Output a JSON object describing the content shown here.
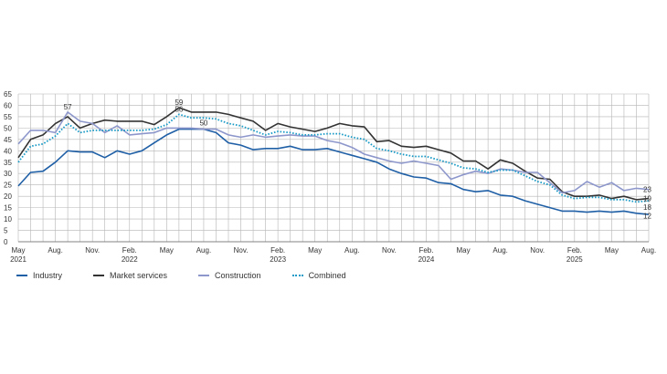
{
  "chart_data": {
    "type": "line",
    "title": "",
    "xlabel": "",
    "ylabel": "",
    "ylim": [
      0,
      65
    ],
    "yticks": [
      0,
      5,
      10,
      15,
      20,
      25,
      30,
      35,
      40,
      45,
      50,
      55,
      60,
      65
    ],
    "grid": true,
    "legend_position": "bottom",
    "x": [
      "2021-05",
      "2021-06",
      "2021-07",
      "2021-08",
      "2021-09",
      "2021-10",
      "2021-11",
      "2021-12",
      "2022-01",
      "2022-02",
      "2022-03",
      "2022-04",
      "2022-05",
      "2022-06",
      "2022-07",
      "2022-08",
      "2022-09",
      "2022-10",
      "2022-11",
      "2022-12",
      "2023-01",
      "2023-02",
      "2023-03",
      "2023-04",
      "2023-05",
      "2023-06",
      "2023-07",
      "2023-08",
      "2023-09",
      "2023-10",
      "2023-11",
      "2023-12",
      "2024-01",
      "2024-02",
      "2024-03",
      "2024-04",
      "2024-05",
      "2024-06",
      "2024-07",
      "2024-08",
      "2024-09",
      "2024-10",
      "2024-11",
      "2024-12",
      "2025-01",
      "2025-02",
      "2025-03",
      "2025-04",
      "2025-05",
      "2025-06",
      "2025-07",
      "2025-08"
    ],
    "x_tick_labels": [
      {
        "month": "May",
        "year": "2021"
      },
      {
        "month": "Aug.",
        "year": ""
      },
      {
        "month": "Nov.",
        "year": ""
      },
      {
        "month": "Feb.",
        "year": "2022"
      },
      {
        "month": "May",
        "year": ""
      },
      {
        "month": "Aug.",
        "year": ""
      },
      {
        "month": "Nov.",
        "year": ""
      },
      {
        "month": "Feb.",
        "year": "2023"
      },
      {
        "month": "May",
        "year": ""
      },
      {
        "month": "Aug.",
        "year": ""
      },
      {
        "month": "Nov.",
        "year": ""
      },
      {
        "month": "Feb.",
        "year": "2024"
      },
      {
        "month": "May",
        "year": ""
      },
      {
        "month": "Aug.",
        "year": ""
      },
      {
        "month": "Nov.",
        "year": ""
      },
      {
        "month": "Feb.",
        "year": "2025"
      },
      {
        "month": "May",
        "year": ""
      },
      {
        "month": "Aug.",
        "year": ""
      }
    ],
    "series": [
      {
        "name": "Industry",
        "color": "#1f5fa6",
        "style": "solid",
        "values": [
          24.5,
          30.5,
          31,
          35,
          40,
          39.5,
          39.5,
          37,
          40,
          38.5,
          40,
          43.5,
          47,
          49.5,
          49.5,
          49.5,
          48,
          43.5,
          42.5,
          40.5,
          41,
          41,
          42,
          40.5,
          40.5,
          41,
          39.5,
          38,
          36.5,
          35,
          32,
          30,
          28.5,
          28,
          26,
          25.5,
          23,
          22,
          22.5,
          20.5,
          20,
          18,
          16.5,
          15,
          13.5,
          13.5,
          13,
          13.5,
          13,
          13.5,
          12.5,
          12
        ]
      },
      {
        "name": "Market services",
        "color": "#333333",
        "style": "solid",
        "values": [
          37,
          45,
          47,
          52,
          55,
          50,
          52,
          53.5,
          53,
          53,
          53,
          51.5,
          55,
          59,
          57,
          57,
          57,
          56,
          54.5,
          53,
          49,
          52,
          50.5,
          49.5,
          48.5,
          50,
          52,
          51,
          50.5,
          44,
          44.5,
          42,
          41.5,
          42,
          40.5,
          39,
          35.5,
          35.5,
          32,
          36,
          34.5,
          31,
          28,
          27.5,
          22,
          20,
          20,
          20.5,
          19,
          20,
          18.5,
          19
        ]
      },
      {
        "name": "Construction",
        "color": "#8d97cb",
        "style": "solid",
        "values": [
          43,
          49,
          49,
          48,
          57,
          53,
          52,
          48,
          51,
          47,
          47.5,
          48,
          50,
          50,
          50,
          49.5,
          49.5,
          47,
          46,
          47,
          46,
          46.5,
          47,
          46.5,
          46.5,
          44.5,
          43.5,
          41.5,
          38.5,
          37,
          35.5,
          34.5,
          35.5,
          34.5,
          33.5,
          27.5,
          29.5,
          31,
          30,
          32,
          31.5,
          30.5,
          30.5,
          26,
          21.5,
          22.5,
          26.5,
          24,
          26,
          22.5,
          23.5,
          23
        ]
      },
      {
        "name": "Combined",
        "color": "#1a9bc7",
        "style": "dotted",
        "values": [
          35,
          42,
          43,
          46.5,
          52,
          48,
          49,
          49,
          49,
          49,
          49,
          49.5,
          51.5,
          56,
          54.5,
          54.5,
          54,
          52,
          51,
          49,
          47,
          48.5,
          48,
          47,
          47,
          47.5,
          47.5,
          46,
          45,
          41,
          40,
          38.5,
          37.5,
          37.5,
          36,
          34.5,
          32.5,
          32,
          30.5,
          31.5,
          31.5,
          29,
          26.5,
          25,
          20.5,
          19,
          19.5,
          19.5,
          18.5,
          18.5,
          17.5,
          18
        ]
      }
    ],
    "annotations": [
      {
        "text": "57",
        "x": "2021-09",
        "y": 57
      },
      {
        "text": "59",
        "x": "2022-06",
        "y": 59
      },
      {
        "text": "56",
        "x": "2022-06",
        "y": 56
      },
      {
        "text": "50",
        "x": "2022-08",
        "y": 50
      }
    ],
    "end_labels": [
      {
        "text": "23",
        "series": "Construction"
      },
      {
        "text": "19",
        "series": "Market services"
      },
      {
        "text": "18",
        "series": "Combined"
      },
      {
        "text": "12",
        "series": "Industry"
      }
    ]
  }
}
